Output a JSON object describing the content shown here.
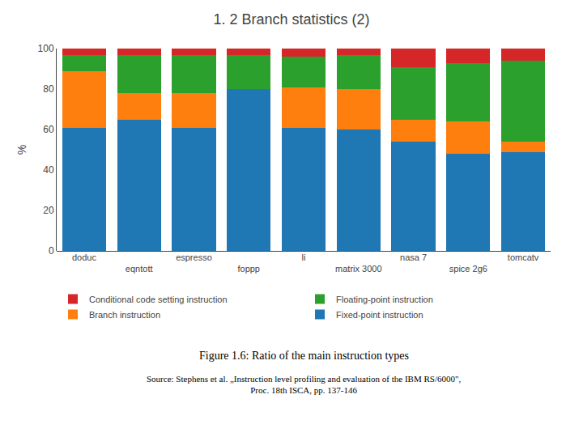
{
  "chart_data": {
    "type": "bar",
    "title": "1. 2 Branch statistics (2)",
    "categories": [
      "doduc",
      "eqntott",
      "espresso",
      "foppp",
      "li",
      "matrix 3000",
      "nasa 7",
      "spice 2g6",
      "tomcatv"
    ],
    "series": [
      {
        "name": "Fixed-point instruction",
        "values": [
          61,
          65,
          61,
          80,
          61,
          60,
          54,
          48,
          49
        ]
      },
      {
        "name": "Branch instruction",
        "values": [
          28,
          13,
          17,
          0,
          20,
          20,
          11,
          16,
          5
        ]
      },
      {
        "name": "Floating-point instruction",
        "values": [
          8,
          19,
          19,
          17,
          15,
          17,
          26,
          29,
          40
        ]
      },
      {
        "name": "Conditional code setting instruction",
        "values": [
          3,
          3,
          3,
          3,
          4,
          3,
          9,
          7,
          6
        ]
      }
    ],
    "ylabel": "%",
    "ylim": [
      0,
      100
    ],
    "yticks": [
      0,
      20,
      40,
      60,
      80,
      100
    ],
    "stacked": true,
    "grid": false,
    "legend": "bottom",
    "annotations": [
      "Figure 1.6: Ratio of the main instruction types",
      "Source: Stephens et al. „Instruction level profiling and evaluation of the IBM RS/6000\",\nProc. 18th ISCA, pp. 137-146"
    ]
  }
}
